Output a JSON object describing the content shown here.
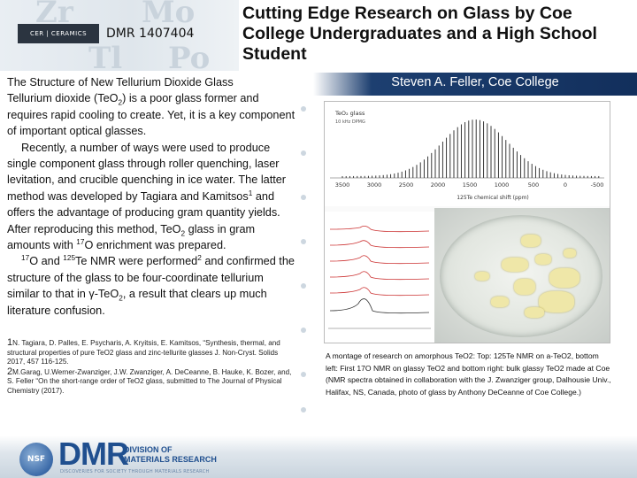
{
  "header": {
    "logo_text": "CER | CERAMICS",
    "award": "DMR 1407404",
    "title": "Cutting Edge Research on Glass by Coe College Undergraduates and a High School Student"
  },
  "left": {
    "heading": "The Structure of New Tellurium Dioxide Glass",
    "p1_a": "Tellurium dioxide (TeO",
    "p1_sub": "2",
    "p1_b": ") is a poor glass former and requires rapid cooling to create. Yet, it is a key component of important optical glasses.",
    "p2_a": "Recently, a number of ways were used to produce single component glass through roller quenching, laser levitation, and crucible quenching in ice water. The latter method was developed by Tagiara and Kamitsos",
    "p2_sup": "1",
    "p2_b": " and offers the advantage of producing gram quantity yields. After reproducing this method, TeO",
    "p2_sub": "2",
    "p2_c": " glass in gram amounts with ",
    "p2_sup2": "17",
    "p2_d": "O enrichment was prepared.",
    "p3_sup1": "17",
    "p3_a": "O and ",
    "p3_sup2": "125",
    "p3_b": "Te NMR were performed",
    "p3_sup3": "2",
    "p3_c": " and confirmed the structure of the glass to be four-coordinate tellurium similar to that in γ-TeO",
    "p3_sub": "2",
    "p3_d": ", a result that clears up much literature confusion."
  },
  "refs": {
    "r1_num": "1",
    "r1": "N. Tagiara, D. Palles, E. Psycharis, A. Kryitsis, E. Kamitsos, “Synthesis, thermal, and structural properties of pure TeO2 glass and zinc-tellurite glasses J. Non-Cryst. Solids 2017, 457 116-125.",
    "r2_num": "2",
    "r2": "M.Garag, U.Werner-Zwanziger, J.W. Zwanziger, A. DeCeanne, B. Hauke, K. Bozer, and, S. Feller “On the short-range order of TeO2 glass, submitted to The Journal of Physical Chemistry (2017)."
  },
  "pi": "Steven  A. Feller, Coe College",
  "figure": {
    "legend1": "TeO₂ glass",
    "legend2": "10 kHz DPMG",
    "ticks": [
      "3500",
      "3000",
      "2500",
      "2000",
      "1500",
      "1000",
      "500",
      "0",
      "-500"
    ],
    "xlabel": "125Te chemical shift (ppm)"
  },
  "caption": "A montage of research on amorphous TeO2: Top: 125Te NMR on a-TeO2, bottom left: First 17O NMR on glassy TeO2 and bottom right: bulk glassy TeO2 made at Coe (NMR spectra obtained in collaboration with the J. Zwanziger group, Dalhousie Univ., Halifax, NS, Canada, photo of glass by Anthony DeCeanne of Coe College.)",
  "footer": {
    "nsf": "NSF",
    "dmr": "DMR",
    "division_line1": "DIVISION OF",
    "division_line2": "MATERIALS RESEARCH",
    "tagline": "DISCOVERIES FOR SOCIETY THROUGH MATERIALS RESEARCH"
  },
  "colors": {
    "pi_band": "#122f5c",
    "dmr_blue": "#1f4f8f"
  }
}
